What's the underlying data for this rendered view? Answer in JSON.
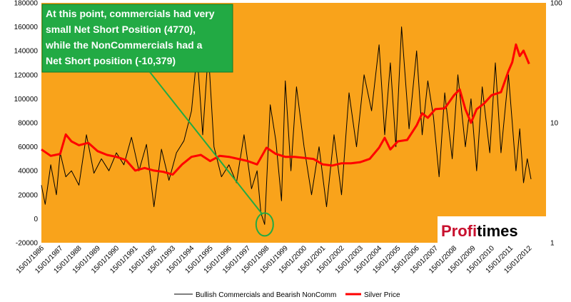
{
  "chart_data": {
    "type": "line",
    "background_color": "#f9a31b",
    "grid": false,
    "legend_placement": "bottom",
    "y_left": {
      "ticks": [
        "-20000",
        "0",
        "20000",
        "40000",
        "60000",
        "80000",
        "100000",
        "120000",
        "140000",
        "160000",
        "180000"
      ],
      "range": [
        -20000,
        180000
      ]
    },
    "y_right": {
      "scale": "log",
      "ticks": [
        "1",
        "10",
        "100"
      ],
      "range": [
        1,
        100
      ]
    },
    "x_ticks": [
      "15/01/1986",
      "15/01/1987",
      "15/01/1988",
      "15/01/1989",
      "15/01/1990",
      "15/01/1991",
      "15/01/1992",
      "15/01/1993",
      "15/01/1994",
      "15/01/1995",
      "15/01/1996",
      "15/01/1997",
      "15/01/1998",
      "15/01/1999",
      "15/01/2000",
      "15/01/2001",
      "15/01/2002",
      "15/01/2003",
      "15/01/2004",
      "15/01/2005",
      "15/01/2006",
      "15/01/2007",
      "15/01/2008",
      "15/01/2009",
      "15/01/2010",
      "15/01/2011",
      "15/01/2012"
    ],
    "series": [
      {
        "name": "Bullish Commercials and Bearish NonComm",
        "color": "#000000",
        "axis": "left",
        "x": [
          1986.0,
          1986.2,
          1986.5,
          1986.8,
          1987.0,
          1987.3,
          1987.6,
          1988.0,
          1988.4,
          1988.8,
          1989.2,
          1989.6,
          1990.0,
          1990.4,
          1990.8,
          1991.2,
          1991.6,
          1992.0,
          1992.4,
          1992.8,
          1993.2,
          1993.6,
          1994.0,
          1994.3,
          1994.6,
          1994.9,
          1995.2,
          1995.6,
          1996.0,
          1996.4,
          1996.8,
          1997.2,
          1997.5,
          1997.7,
          1997.9,
          1998.2,
          1998.5,
          1998.8,
          1999.0,
          1999.3,
          1999.6,
          2000.0,
          2000.4,
          2000.8,
          2001.2,
          2001.6,
          2002.0,
          2002.4,
          2002.8,
          2003.2,
          2003.6,
          2004.0,
          2004.3,
          2004.6,
          2004.9,
          2005.2,
          2005.6,
          2006.0,
          2006.3,
          2006.6,
          2006.9,
          2007.2,
          2007.5,
          2007.9,
          2008.2,
          2008.6,
          2008.9,
          2009.2,
          2009.5,
          2009.9,
          2010.2,
          2010.5,
          2010.9,
          2011.1,
          2011.3,
          2011.5,
          2011.7,
          2011.9,
          2012.1
        ],
        "y": [
          28000,
          12000,
          45000,
          20000,
          55000,
          35000,
          40000,
          28000,
          70000,
          38000,
          50000,
          40000,
          55000,
          45000,
          68000,
          40000,
          62000,
          10000,
          58000,
          32000,
          55000,
          65000,
          90000,
          138000,
          70000,
          140000,
          60000,
          35000,
          45000,
          30000,
          70000,
          25000,
          40000,
          5000,
          -4770,
          95000,
          65000,
          15000,
          115000,
          40000,
          110000,
          60000,
          20000,
          60000,
          10000,
          70000,
          20000,
          105000,
          60000,
          120000,
          90000,
          145000,
          70000,
          130000,
          60000,
          160000,
          75000,
          140000,
          70000,
          115000,
          85000,
          35000,
          105000,
          50000,
          120000,
          60000,
          100000,
          40000,
          110000,
          55000,
          130000,
          55000,
          120000,
          80000,
          40000,
          75000,
          30000,
          50000,
          33000
        ]
      },
      {
        "name": "Silver Price",
        "color": "#ff0000",
        "axis": "right",
        "x": [
          1986.0,
          1986.5,
          1987.0,
          1987.3,
          1987.6,
          1988.0,
          1988.5,
          1989.0,
          1989.5,
          1990.0,
          1990.5,
          1991.0,
          1991.5,
          1992.0,
          1992.5,
          1993.0,
          1993.5,
          1994.0,
          1994.5,
          1995.0,
          1995.5,
          1996.0,
          1996.5,
          1997.0,
          1997.5,
          1998.0,
          1998.5,
          1999.0,
          1999.5,
          2000.0,
          2000.5,
          2001.0,
          2001.5,
          2002.0,
          2002.5,
          2003.0,
          2003.5,
          2004.0,
          2004.3,
          2004.6,
          2005.0,
          2005.5,
          2006.0,
          2006.3,
          2006.6,
          2007.0,
          2007.5,
          2008.0,
          2008.3,
          2008.6,
          2008.9,
          2009.2,
          2009.6,
          2010.0,
          2010.5,
          2010.9,
          2011.1,
          2011.3,
          2011.5,
          2011.7,
          2012.0
        ],
        "y": [
          6.0,
          5.3,
          5.5,
          8.0,
          7.0,
          6.5,
          6.8,
          5.8,
          5.4,
          5.2,
          4.9,
          4.0,
          4.2,
          4.0,
          3.9,
          3.7,
          4.5,
          5.2,
          5.4,
          4.8,
          5.3,
          5.2,
          5.0,
          4.8,
          4.5,
          6.2,
          5.5,
          5.2,
          5.2,
          5.1,
          5.0,
          4.5,
          4.4,
          4.6,
          4.6,
          4.7,
          5.0,
          6.2,
          7.5,
          6.0,
          7.0,
          7.2,
          9.5,
          12.0,
          11.0,
          13.0,
          13.2,
          17.0,
          19.0,
          13.0,
          10.0,
          13.0,
          14.5,
          17.0,
          18.0,
          27.0,
          32.0,
          45.0,
          36.0,
          40.0,
          31.0
        ]
      }
    ],
    "annotation": {
      "text_lines": [
        "At this point, commercials had very",
        "small Net Short Position (4770),",
        "while the NonCommercials had a",
        "Net Short position (-10,379)"
      ],
      "box_fill": "#22aa44",
      "target": {
        "x": 1997.9,
        "y": -4770
      }
    }
  },
  "logo": {
    "part1": "Profi",
    "part2": "times"
  }
}
